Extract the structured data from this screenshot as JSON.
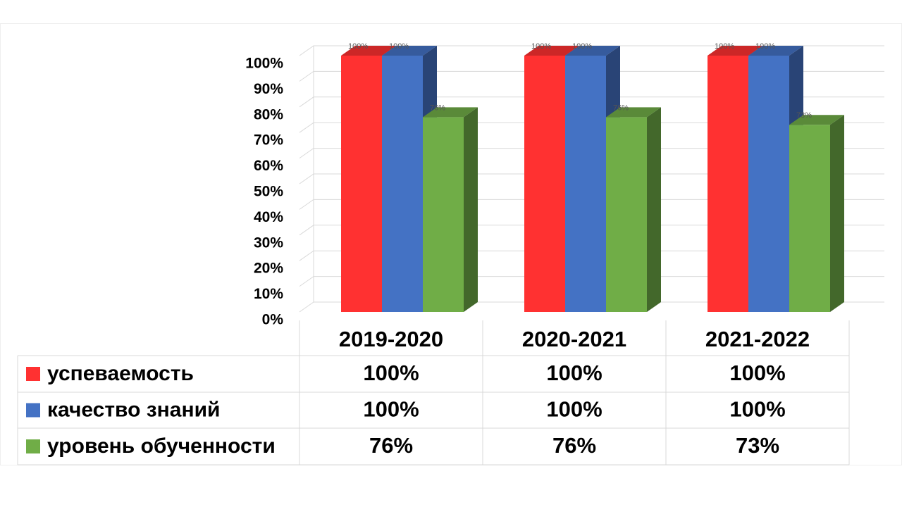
{
  "chart_data": {
    "type": "bar",
    "categories": [
      "2019-2020",
      "2020-2021",
      "2021-2022"
    ],
    "series": [
      {
        "name": "успеваемость",
        "color": "#ff3131",
        "values": [
          100,
          100,
          100
        ],
        "value_labels": [
          "100%",
          "100%",
          "100%"
        ]
      },
      {
        "name": "качество знаний",
        "color": "#4472c4",
        "values": [
          100,
          100,
          100
        ],
        "value_labels": [
          "100%",
          "100%",
          "100%"
        ]
      },
      {
        "name": "уровень обученности",
        "color": "#70ad47",
        "values": [
          76,
          76,
          73
        ],
        "value_labels": [
          "76%",
          "76%",
          "73%"
        ]
      }
    ],
    "ylim": [
      0,
      100
    ],
    "yticks": [
      {
        "value": 0,
        "label": "0%"
      },
      {
        "value": 10,
        "label": "10%"
      },
      {
        "value": 20,
        "label": "20%"
      },
      {
        "value": 30,
        "label": "30%"
      },
      {
        "value": 40,
        "label": "40%"
      },
      {
        "value": 50,
        "label": "50%"
      },
      {
        "value": 60,
        "label": "60%"
      },
      {
        "value": 70,
        "label": "70%"
      },
      {
        "value": 80,
        "label": "80%"
      },
      {
        "value": 90,
        "label": "90%"
      },
      {
        "value": 100,
        "label": "100%"
      }
    ],
    "grid": true
  }
}
